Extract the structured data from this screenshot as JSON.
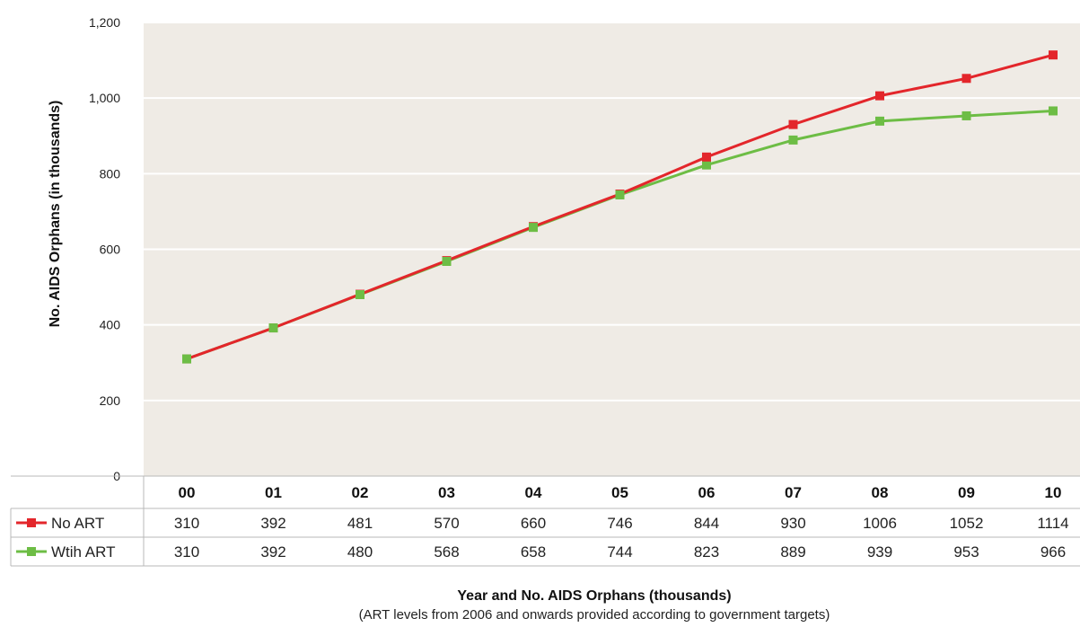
{
  "chart_data": {
    "type": "line",
    "categories": [
      "00",
      "01",
      "02",
      "03",
      "04",
      "05",
      "06",
      "07",
      "08",
      "09",
      "10"
    ],
    "series": [
      {
        "name": "No ART",
        "color": "#e3262b",
        "values": [
          310,
          392,
          481,
          570,
          660,
          746,
          844,
          930,
          1006,
          1052,
          1114
        ]
      },
      {
        "name": "Wtih ART",
        "color": "#6dbd45",
        "values": [
          310,
          392,
          480,
          568,
          658,
          744,
          823,
          889,
          939,
          953,
          966
        ]
      }
    ],
    "ylabel": "No. AIDS Orphans (in thousands)",
    "xlabel": "Year and No. AIDS Orphans (thousands)",
    "subtitle": "(ART levels from 2006 and onwards provided according to government targets)",
    "ylim": [
      0,
      1200
    ],
    "yticks": [
      0,
      200,
      400,
      600,
      800,
      1000,
      1200
    ],
    "ytick_labels": [
      "0",
      "200",
      "400",
      "600",
      "800",
      "1,000",
      "1,200"
    ],
    "grid": true,
    "legend_placement": "data-table",
    "plot_background": "#efebe5",
    "marker": "square"
  }
}
